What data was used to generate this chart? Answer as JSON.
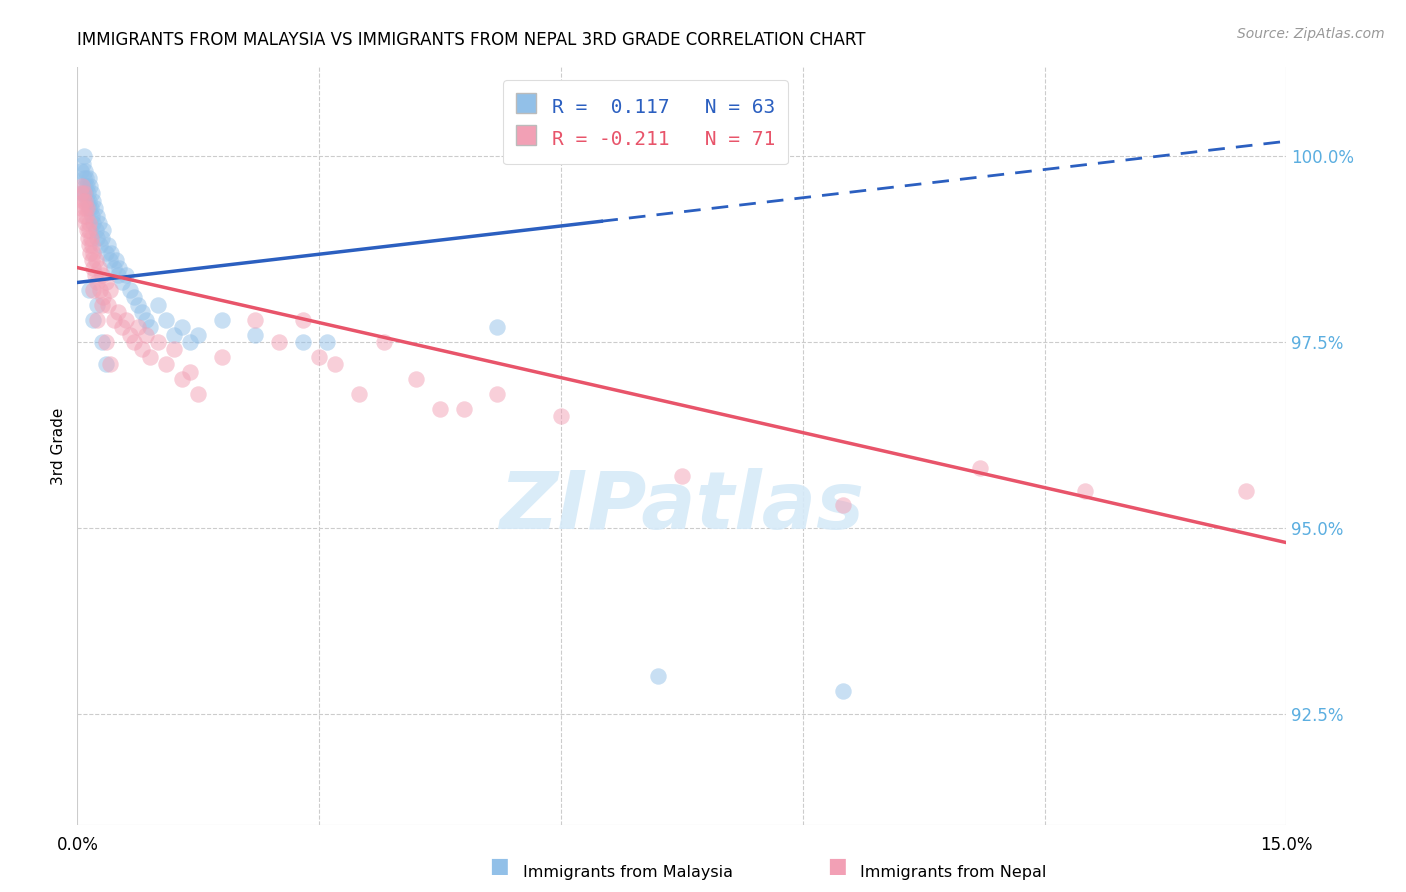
{
  "title": "IMMIGRANTS FROM MALAYSIA VS IMMIGRANTS FROM NEPAL 3RD GRADE CORRELATION CHART",
  "source": "Source: ZipAtlas.com",
  "ylabel": "3rd Grade",
  "ytick_values": [
    92.5,
    95.0,
    97.5,
    100.0
  ],
  "xmin": 0.0,
  "xmax": 15.0,
  "ymin": 91.0,
  "ymax": 101.2,
  "R_malaysia": 0.117,
  "N_malaysia": 63,
  "R_nepal": -0.211,
  "N_nepal": 71,
  "color_malaysia": "#92C0E8",
  "color_nepal": "#F2A0B5",
  "color_line_malaysia": "#2B5FC0",
  "color_line_nepal": "#E8546A",
  "watermark": "ZIPatlas",
  "watermark_color": "#D6EAF8",
  "malaysia_line_y0": 98.3,
  "malaysia_line_y15": 100.2,
  "nepal_line_y0": 98.5,
  "nepal_line_y15": 94.8,
  "malaysia_x": [
    0.05,
    0.06,
    0.07,
    0.08,
    0.08,
    0.09,
    0.1,
    0.1,
    0.11,
    0.12,
    0.12,
    0.13,
    0.14,
    0.15,
    0.15,
    0.16,
    0.17,
    0.18,
    0.18,
    0.2,
    0.2,
    0.22,
    0.23,
    0.25,
    0.25,
    0.27,
    0.28,
    0.3,
    0.32,
    0.35,
    0.38,
    0.4,
    0.42,
    0.45,
    0.48,
    0.5,
    0.52,
    0.55,
    0.6,
    0.65,
    0.7,
    0.75,
    0.8,
    0.85,
    0.9,
    1.0,
    1.1,
    1.2,
    1.3,
    1.4,
    1.5,
    1.8,
    2.2,
    2.8,
    3.1,
    5.2,
    7.2,
    9.5,
    0.15,
    0.2,
    0.25,
    0.3,
    0.35
  ],
  "malaysia_y": [
    99.8,
    99.5,
    99.9,
    100.0,
    99.7,
    99.6,
    99.8,
    99.5,
    99.7,
    99.6,
    99.4,
    99.5,
    99.3,
    99.7,
    99.4,
    99.6,
    99.3,
    99.5,
    99.2,
    99.4,
    99.1,
    99.3,
    99.0,
    99.2,
    98.9,
    99.1,
    98.8,
    98.9,
    99.0,
    98.7,
    98.8,
    98.6,
    98.7,
    98.5,
    98.6,
    98.4,
    98.5,
    98.3,
    98.4,
    98.2,
    98.1,
    98.0,
    97.9,
    97.8,
    97.7,
    98.0,
    97.8,
    97.6,
    97.7,
    97.5,
    97.6,
    97.8,
    97.6,
    97.5,
    97.5,
    97.7,
    93.0,
    92.8,
    98.2,
    97.8,
    98.0,
    97.5,
    97.2
  ],
  "nepal_x": [
    0.04,
    0.05,
    0.06,
    0.07,
    0.08,
    0.08,
    0.09,
    0.1,
    0.1,
    0.11,
    0.12,
    0.12,
    0.13,
    0.14,
    0.15,
    0.15,
    0.16,
    0.17,
    0.18,
    0.18,
    0.2,
    0.2,
    0.22,
    0.23,
    0.25,
    0.27,
    0.28,
    0.3,
    0.32,
    0.35,
    0.38,
    0.4,
    0.45,
    0.5,
    0.55,
    0.6,
    0.65,
    0.7,
    0.75,
    0.8,
    0.85,
    0.9,
    1.0,
    1.1,
    1.2,
    1.3,
    1.4,
    1.5,
    1.8,
    2.2,
    2.5,
    3.0,
    3.5,
    3.8,
    4.2,
    4.8,
    5.2,
    6.0,
    7.5,
    9.5,
    11.2,
    12.5,
    14.5,
    0.2,
    0.25,
    0.3,
    0.35,
    0.4,
    2.8,
    3.2,
    4.5
  ],
  "nepal_y": [
    99.5,
    99.3,
    99.6,
    99.4,
    99.5,
    99.2,
    99.4,
    99.3,
    99.1,
    99.2,
    99.0,
    99.3,
    98.9,
    99.1,
    98.8,
    99.0,
    98.7,
    98.9,
    98.6,
    98.8,
    98.5,
    98.7,
    98.4,
    98.6,
    98.3,
    98.5,
    98.2,
    98.4,
    98.1,
    98.3,
    98.0,
    98.2,
    97.8,
    97.9,
    97.7,
    97.8,
    97.6,
    97.5,
    97.7,
    97.4,
    97.6,
    97.3,
    97.5,
    97.2,
    97.4,
    97.0,
    97.1,
    96.8,
    97.3,
    97.8,
    97.5,
    97.3,
    96.8,
    97.5,
    97.0,
    96.6,
    96.8,
    96.5,
    95.7,
    95.3,
    95.8,
    95.5,
    95.5,
    98.2,
    97.8,
    98.0,
    97.5,
    97.2,
    97.8,
    97.2,
    96.6
  ]
}
